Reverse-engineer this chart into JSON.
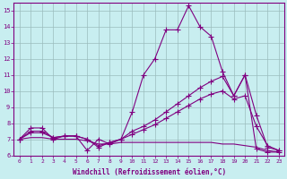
{
  "xlabel": "Windchill (Refroidissement éolien,°C)",
  "background_color": "#c8eef0",
  "line_color": "#800080",
  "grid_color": "#9bbcbd",
  "xlim": [
    -0.5,
    23.5
  ],
  "ylim": [
    6,
    15.5
  ],
  "xticks": [
    0,
    1,
    2,
    3,
    4,
    5,
    6,
    7,
    8,
    9,
    10,
    11,
    12,
    13,
    14,
    15,
    16,
    17,
    18,
    19,
    20,
    21,
    22,
    23
  ],
  "yticks": [
    6,
    7,
    8,
    9,
    10,
    11,
    12,
    13,
    14,
    15
  ],
  "line1_x": [
    0,
    1,
    2,
    3,
    4,
    5,
    6,
    7,
    8,
    9,
    10,
    11,
    12,
    13,
    14,
    15,
    16,
    17,
    18,
    19,
    20,
    21,
    22,
    23
  ],
  "line1_y": [
    7.0,
    7.7,
    7.7,
    7.0,
    7.2,
    7.2,
    6.3,
    7.0,
    6.7,
    7.0,
    8.7,
    11.0,
    12.0,
    13.8,
    13.8,
    15.3,
    14.0,
    13.4,
    11.2,
    9.7,
    11.0,
    6.4,
    6.2,
    6.2
  ],
  "line2_x": [
    0,
    1,
    2,
    3,
    4,
    5,
    6,
    7,
    8,
    9,
    10,
    11,
    12,
    13,
    14,
    15,
    16,
    17,
    18,
    19,
    20,
    21,
    22,
    23
  ],
  "line2_y": [
    7.0,
    7.5,
    7.5,
    7.1,
    7.2,
    7.2,
    7.0,
    6.5,
    6.8,
    7.0,
    7.5,
    7.8,
    8.2,
    8.7,
    9.2,
    9.7,
    10.2,
    10.6,
    10.9,
    9.7,
    11.0,
    8.5,
    6.5,
    6.3
  ],
  "line3_x": [
    0,
    1,
    2,
    3,
    4,
    5,
    6,
    7,
    8,
    9,
    10,
    11,
    12,
    13,
    14,
    15,
    16,
    17,
    18,
    19,
    20,
    21,
    22,
    23
  ],
  "line3_y": [
    7.0,
    7.4,
    7.4,
    7.1,
    7.2,
    7.2,
    7.0,
    6.6,
    6.8,
    7.0,
    7.3,
    7.6,
    7.9,
    8.3,
    8.7,
    9.1,
    9.5,
    9.8,
    10.0,
    9.5,
    9.7,
    7.8,
    6.6,
    6.3
  ],
  "line4_x": [
    0,
    1,
    2,
    3,
    4,
    5,
    6,
    7,
    8,
    9,
    10,
    11,
    12,
    13,
    14,
    15,
    16,
    17,
    18,
    19,
    20,
    21,
    22,
    23
  ],
  "line4_y": [
    7.0,
    7.1,
    7.1,
    7.0,
    7.0,
    7.0,
    6.9,
    6.7,
    6.7,
    6.8,
    6.8,
    6.8,
    6.8,
    6.8,
    6.8,
    6.8,
    6.8,
    6.8,
    6.7,
    6.7,
    6.6,
    6.5,
    6.3,
    6.2
  ]
}
